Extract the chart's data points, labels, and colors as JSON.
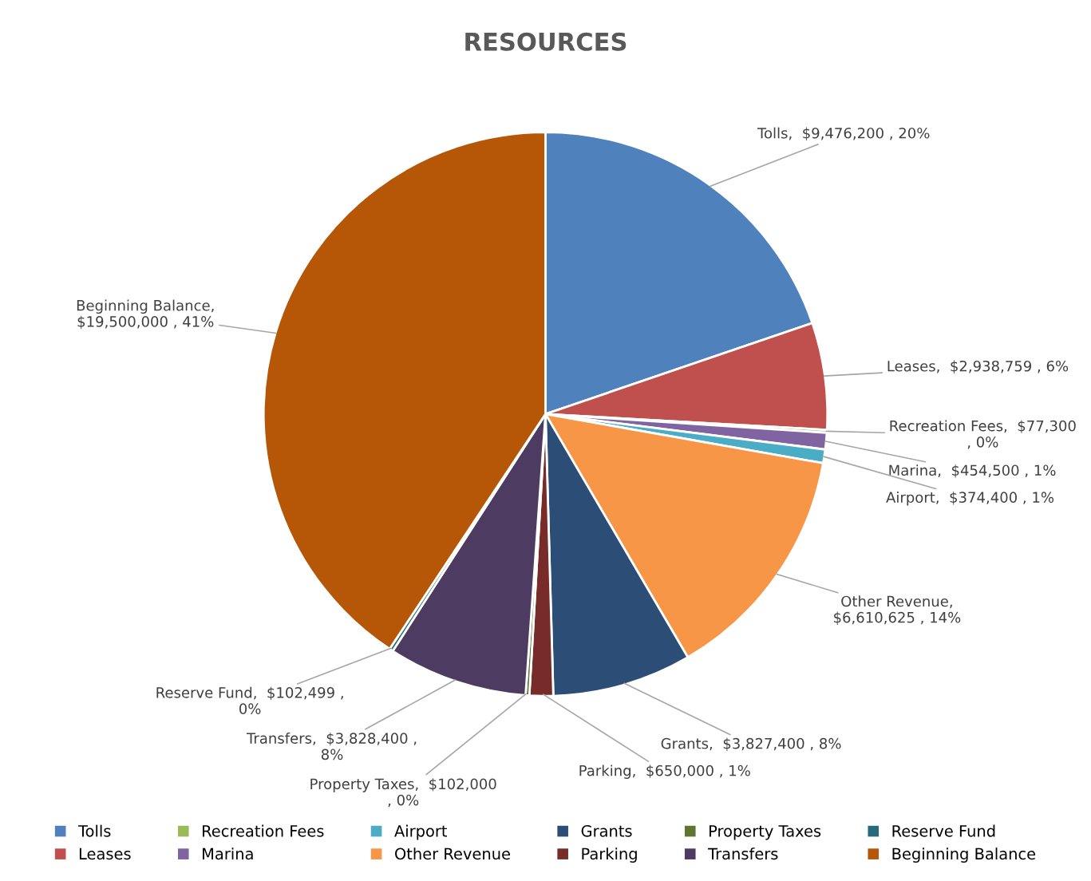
{
  "chart_data": {
    "type": "pie",
    "title": "RESOURCES",
    "categories": [
      "Tolls",
      "Leases",
      "Recreation Fees",
      "Marina",
      "Airport",
      "Other Revenue",
      "Grants",
      "Parking",
      "Property Taxes",
      "Transfers",
      "Reserve Fund",
      "Beginning Balance"
    ],
    "values": [
      9476200,
      2938759,
      77300,
      454500,
      374400,
      6610625,
      3827400,
      650000,
      102000,
      3828400,
      102499,
      19500000
    ],
    "value_labels": [
      "Tolls,  $9,476,200 , 20%",
      "Leases,  $2,938,759 , 6%",
      "Recreation Fees,  $77,300\n, 0%",
      "Marina,  $454,500 , 1%",
      "Airport,  $374,400 , 1%",
      "Other Revenue,\n$6,610,625 , 14%",
      "Grants,  $3,827,400 , 8%",
      "Parking,  $650,000 , 1%",
      "Property Taxes,  $102,000\n, 0%",
      "Transfers,  $3,828,400 ,\n8%",
      "Reserve Fund,  $102,499 ,\n0%",
      "Beginning Balance,\n$19,500,000 , 41%"
    ],
    "colors": [
      "#4f81bd",
      "#c0504d",
      "#9bbb59",
      "#8064a2",
      "#4bacc6",
      "#f79646",
      "#2c4d75",
      "#772c2a",
      "#5f7530",
      "#4d3b62",
      "#276a7c",
      "#b65708"
    ],
    "legend": "bottom"
  }
}
